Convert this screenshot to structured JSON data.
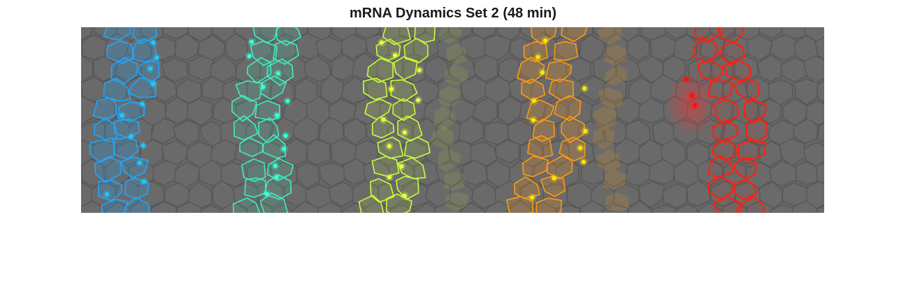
{
  "figure": {
    "title": "mRNA Dynamics Set 2 (48 min)"
  },
  "colors": {
    "background": "#ffffff",
    "tissue": "#666666",
    "cell_edge": "#575757",
    "stripes": [
      "#1ea7ff",
      "#3df0c0",
      "#c8ff3a",
      "#ff9a10",
      "#ff2010"
    ],
    "puncta": [
      "#1ec8ff",
      "#38ffd8",
      "#e8ff40",
      "#ffe600",
      "#ff1010"
    ]
  }
}
